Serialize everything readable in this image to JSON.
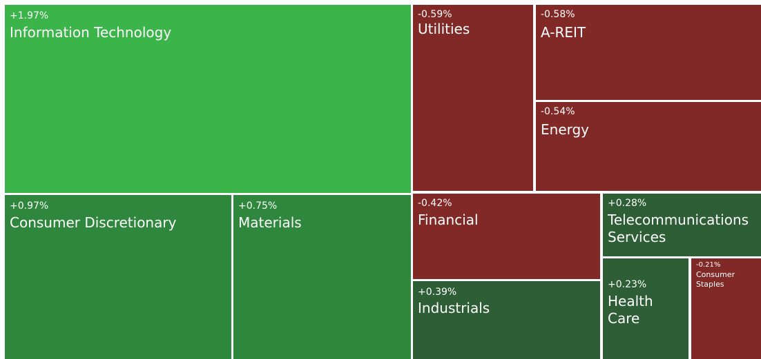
{
  "chart_data": {
    "type": "treemap",
    "tiles": [
      {
        "name": "Information Technology",
        "value": 1.97,
        "value_label": "+1.97%",
        "color": "#3bb54a"
      },
      {
        "name": "Consumer Discretionary",
        "value": 0.97,
        "value_label": "+0.97%",
        "color": "#2f873d"
      },
      {
        "name": "Materials",
        "value": 0.75,
        "value_label": "+0.75%",
        "color": "#2f873d"
      },
      {
        "name": "Utilities",
        "value": -0.59,
        "value_label": "-0.59%",
        "color": "#802927"
      },
      {
        "name": "A-REIT",
        "value": -0.58,
        "value_label": "-0.58%",
        "color": "#802927"
      },
      {
        "name": "Energy",
        "value": -0.54,
        "value_label": "-0.54%",
        "color": "#802927"
      },
      {
        "name": "Financial",
        "value": -0.42,
        "value_label": "-0.42%",
        "color": "#802927"
      },
      {
        "name": "Industrials",
        "value": 0.39,
        "value_label": "+0.39%",
        "color": "#2e5e36"
      },
      {
        "name": "Telecommunications Services",
        "value": 0.28,
        "value_label": "+0.28%",
        "color": "#2e5e36"
      },
      {
        "name": "Health Care",
        "value": 0.23,
        "value_label": "+0.23%",
        "color": "#2e5e36"
      },
      {
        "name": "Consumer Staples",
        "value": -0.21,
        "value_label": "-0.21%",
        "color": "#802927"
      }
    ]
  }
}
